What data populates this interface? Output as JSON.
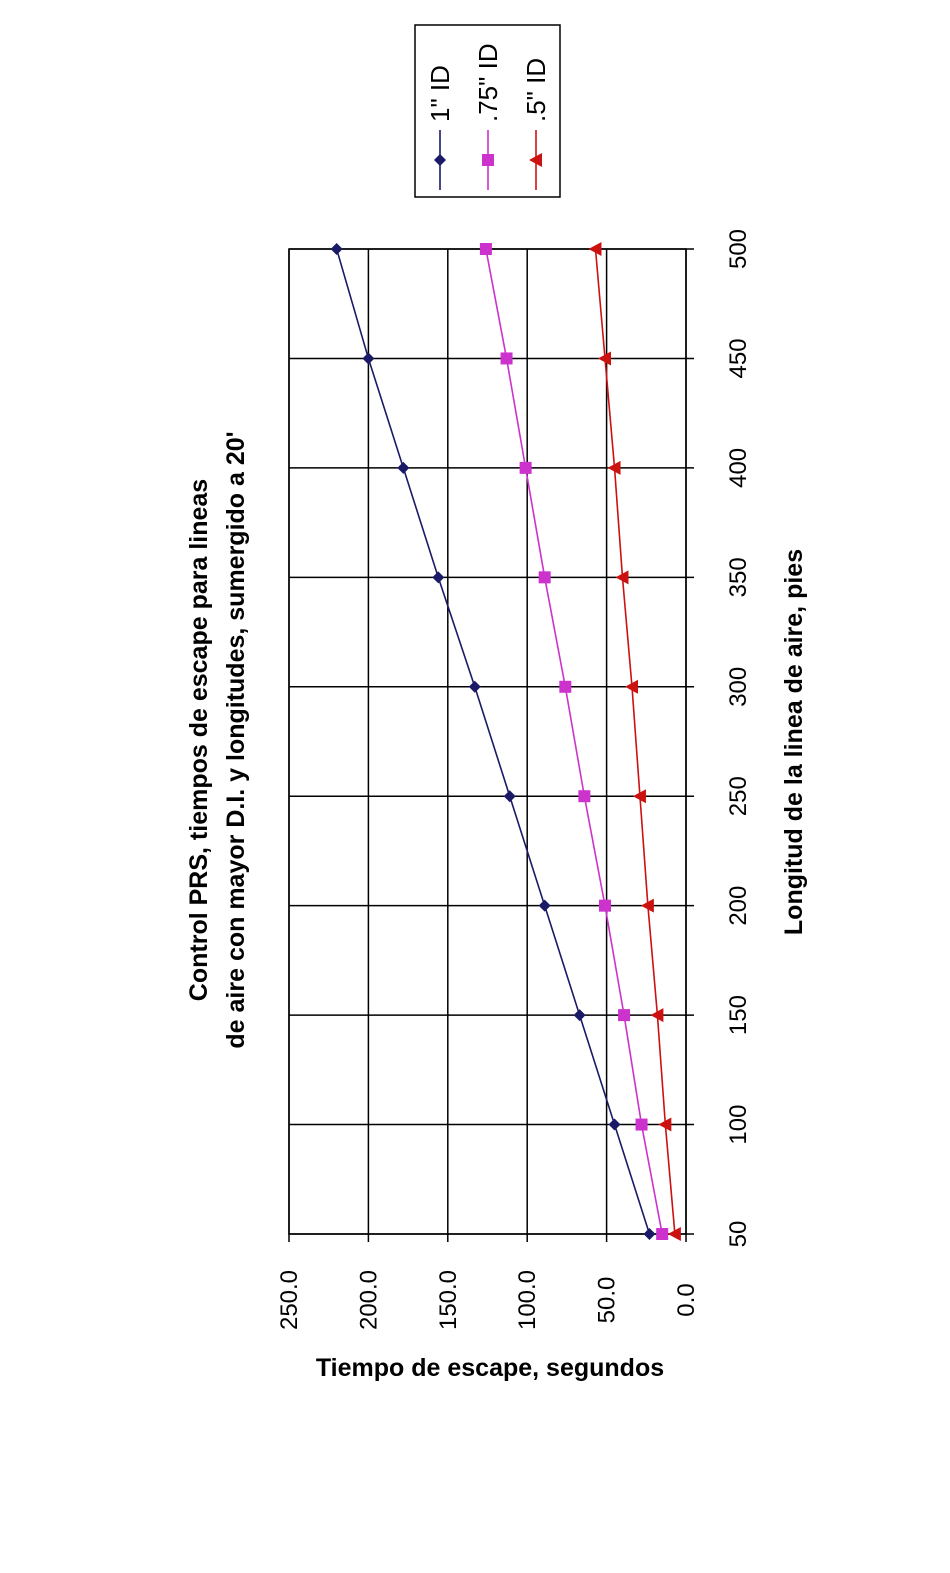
{
  "chart_data": {
    "type": "line",
    "title_lines": [
      "Control PRS, tiempos de escape para lineas",
      "de aire con mayor D.I. y longitudes, sumergido a 20'"
    ],
    "xlabel": "Longitud de la linea de aire, pies",
    "ylabel": "Tiempo de escape, segundos",
    "x": [
      50,
      100,
      150,
      200,
      250,
      300,
      350,
      400,
      450,
      500
    ],
    "x_tick_labels": [
      "50",
      "100",
      "150",
      "200",
      "250",
      "300",
      "350",
      "400",
      "450",
      "500"
    ],
    "ylim": [
      0,
      250
    ],
    "y_ticks": [
      0,
      50,
      100,
      150,
      200,
      250
    ],
    "y_tick_labels": [
      "0.0",
      "50.0",
      "100.0",
      "150.0",
      "200.0",
      "250.0"
    ],
    "grid": true,
    "legend_position": "right, above the plot (chart rotated 90° counter-clockwise)",
    "rotation": "chart rotated 90 degrees counter-clockwise",
    "series": [
      {
        "name": "1\" ID",
        "color": "#1a1a66",
        "marker": "diamond",
        "values": [
          23,
          45,
          67,
          89,
          111,
          133,
          156,
          178,
          200,
          220
        ]
      },
      {
        "name": ".75\" ID",
        "color": "#cc33cc",
        "marker": "square",
        "values": [
          15,
          28,
          39,
          51,
          64,
          76,
          89,
          101,
          113,
          126
        ]
      },
      {
        "name": ".5\" ID",
        "color": "#cc1111",
        "marker": "triangle",
        "values": [
          7,
          13,
          18,
          24,
          29,
          34,
          40,
          45,
          51,
          57
        ]
      }
    ]
  }
}
